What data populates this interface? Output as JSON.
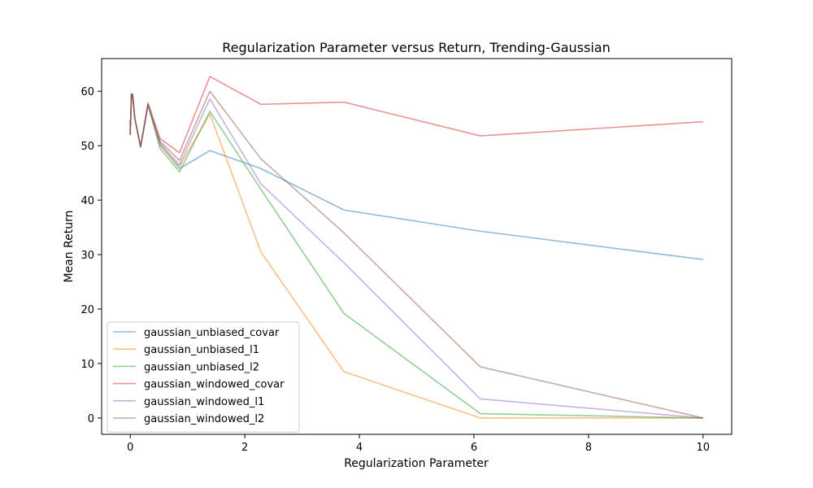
{
  "chart_data": {
    "type": "line",
    "title": "Regularization Parameter versus Return, Trending-Gaussian",
    "xlabel": "Regularization Parameter",
    "ylabel": "Mean Return",
    "xlim": [
      -0.5,
      10.5
    ],
    "ylim": [
      -3,
      66
    ],
    "xticks": [
      0,
      2,
      4,
      6,
      8,
      10
    ],
    "yticks": [
      0,
      10,
      20,
      30,
      40,
      50,
      60
    ],
    "grid": false,
    "legend_position": "lower-left",
    "x": [
      0.0,
      0.0005,
      0.002,
      0.006,
      0.02,
      0.04,
      0.08,
      0.18,
      0.31,
      0.52,
      0.86,
      1.39,
      2.28,
      3.73,
      6.11,
      10.0
    ],
    "series": [
      {
        "name": "gaussian_unbiased_covar",
        "color": "#1f77b4",
        "values": [
          52.0,
          54.7,
          53.5,
          54.0,
          59.5,
          59.4,
          55.0,
          49.8,
          57.5,
          50.2,
          45.8,
          49.1,
          45.8,
          38.2,
          34.3,
          29.1
        ]
      },
      {
        "name": "gaussian_unbiased_l1",
        "color": "#ff7f0e",
        "values": [
          52.0,
          54.7,
          53.5,
          54.0,
          59.5,
          59.4,
          55.0,
          49.8,
          57.5,
          50.0,
          46.2,
          55.8,
          30.5,
          8.5,
          0.0,
          0.0
        ]
      },
      {
        "name": "gaussian_unbiased_l2",
        "color": "#2ca02c",
        "values": [
          52.0,
          54.7,
          53.5,
          54.0,
          59.5,
          59.4,
          55.0,
          49.8,
          57.5,
          49.5,
          45.2,
          56.3,
          42.0,
          19.2,
          0.8,
          0.0
        ]
      },
      {
        "name": "gaussian_windowed_covar",
        "color": "#d62728",
        "values": [
          52.0,
          54.7,
          53.5,
          54.0,
          59.5,
          59.4,
          55.0,
          49.8,
          57.9,
          51.3,
          48.7,
          62.7,
          57.6,
          58.0,
          51.8,
          54.4
        ]
      },
      {
        "name": "gaussian_windowed_l1",
        "color": "#9467bd",
        "values": [
          52.0,
          54.7,
          53.5,
          54.0,
          59.5,
          59.4,
          55.0,
          49.8,
          57.5,
          50.5,
          46.5,
          58.6,
          43.0,
          28.5,
          3.5,
          0.0
        ]
      },
      {
        "name": "gaussian_windowed_l2",
        "color": "#8c564b",
        "values": [
          52.0,
          54.7,
          53.5,
          54.0,
          59.5,
          59.4,
          55.0,
          49.8,
          57.5,
          50.8,
          47.3,
          60.0,
          47.6,
          34.0,
          9.4,
          0.0
        ]
      }
    ]
  }
}
